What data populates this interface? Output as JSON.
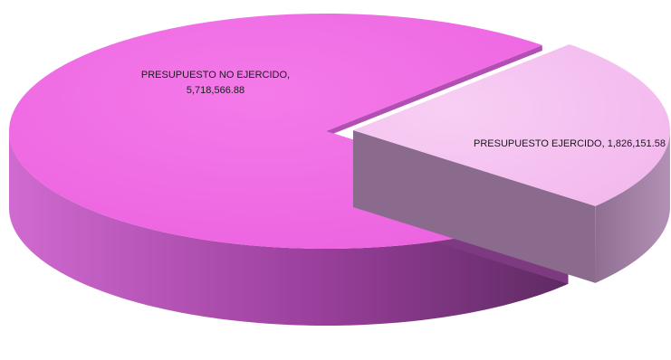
{
  "chart_data": {
    "type": "pie",
    "style": "3d-exploded",
    "title": "",
    "slices": [
      {
        "label": "PRESUPUESTO NO EJERCIDO",
        "value": 5718566.88,
        "value_text": "5,718,566.88",
        "color": "#f06ee6",
        "exploded": false
      },
      {
        "label": "PRESUPUESTO EJERCIDO",
        "value": 1826151.58,
        "value_text": "1,826,151.58",
        "color": "#f7c4f2",
        "exploded": true
      }
    ],
    "legend": "none"
  }
}
